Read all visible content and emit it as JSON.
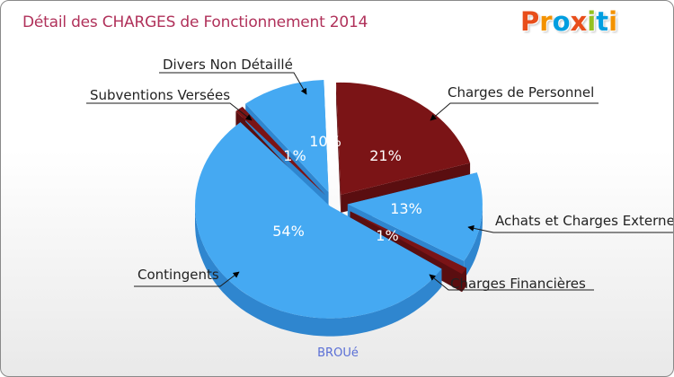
{
  "header": {
    "title": "Détail des CHARGES de Fonctionnement 2014",
    "logo": [
      "P",
      "r",
      "o",
      "x",
      "i",
      "t",
      "i"
    ],
    "logo_colors": [
      "#e84e1b",
      "#f39200",
      "#009ee0",
      "#e84e1b",
      "#95c11f",
      "#009ee0",
      "#f39200"
    ]
  },
  "footer": {
    "commune": "BROUé"
  },
  "chart_data": {
    "type": "pie",
    "title": "Détail des CHARGES de Fonctionnement 2014",
    "subtitle": "BROUé",
    "slices": [
      {
        "label": "Charges de Personnel",
        "value": 21,
        "pct_label": "21%",
        "color": "#7b1416",
        "side_color": "#5a0e10"
      },
      {
        "label": "Achats et Charges Externes",
        "value": 13,
        "pct_label": "13%",
        "color": "#45a9f2",
        "side_color": "#2f86cf"
      },
      {
        "label": "Charges Financières",
        "value": 1,
        "pct_label": "1%",
        "color": "#7b1416",
        "side_color": "#5a0e10"
      },
      {
        "label": "Contingents",
        "value": 54,
        "pct_label": "54%",
        "color": "#45a9f2",
        "side_color": "#2f86cf"
      },
      {
        "label": "Subventions Versées",
        "value": 1,
        "pct_label": "1%",
        "color": "#7b1416",
        "side_color": "#5a0e10"
      },
      {
        "label": "Divers Non Détaillé",
        "value": 10,
        "pct_label": "10%",
        "color": "#45a9f2",
        "side_color": "#2f86cf"
      }
    ]
  }
}
